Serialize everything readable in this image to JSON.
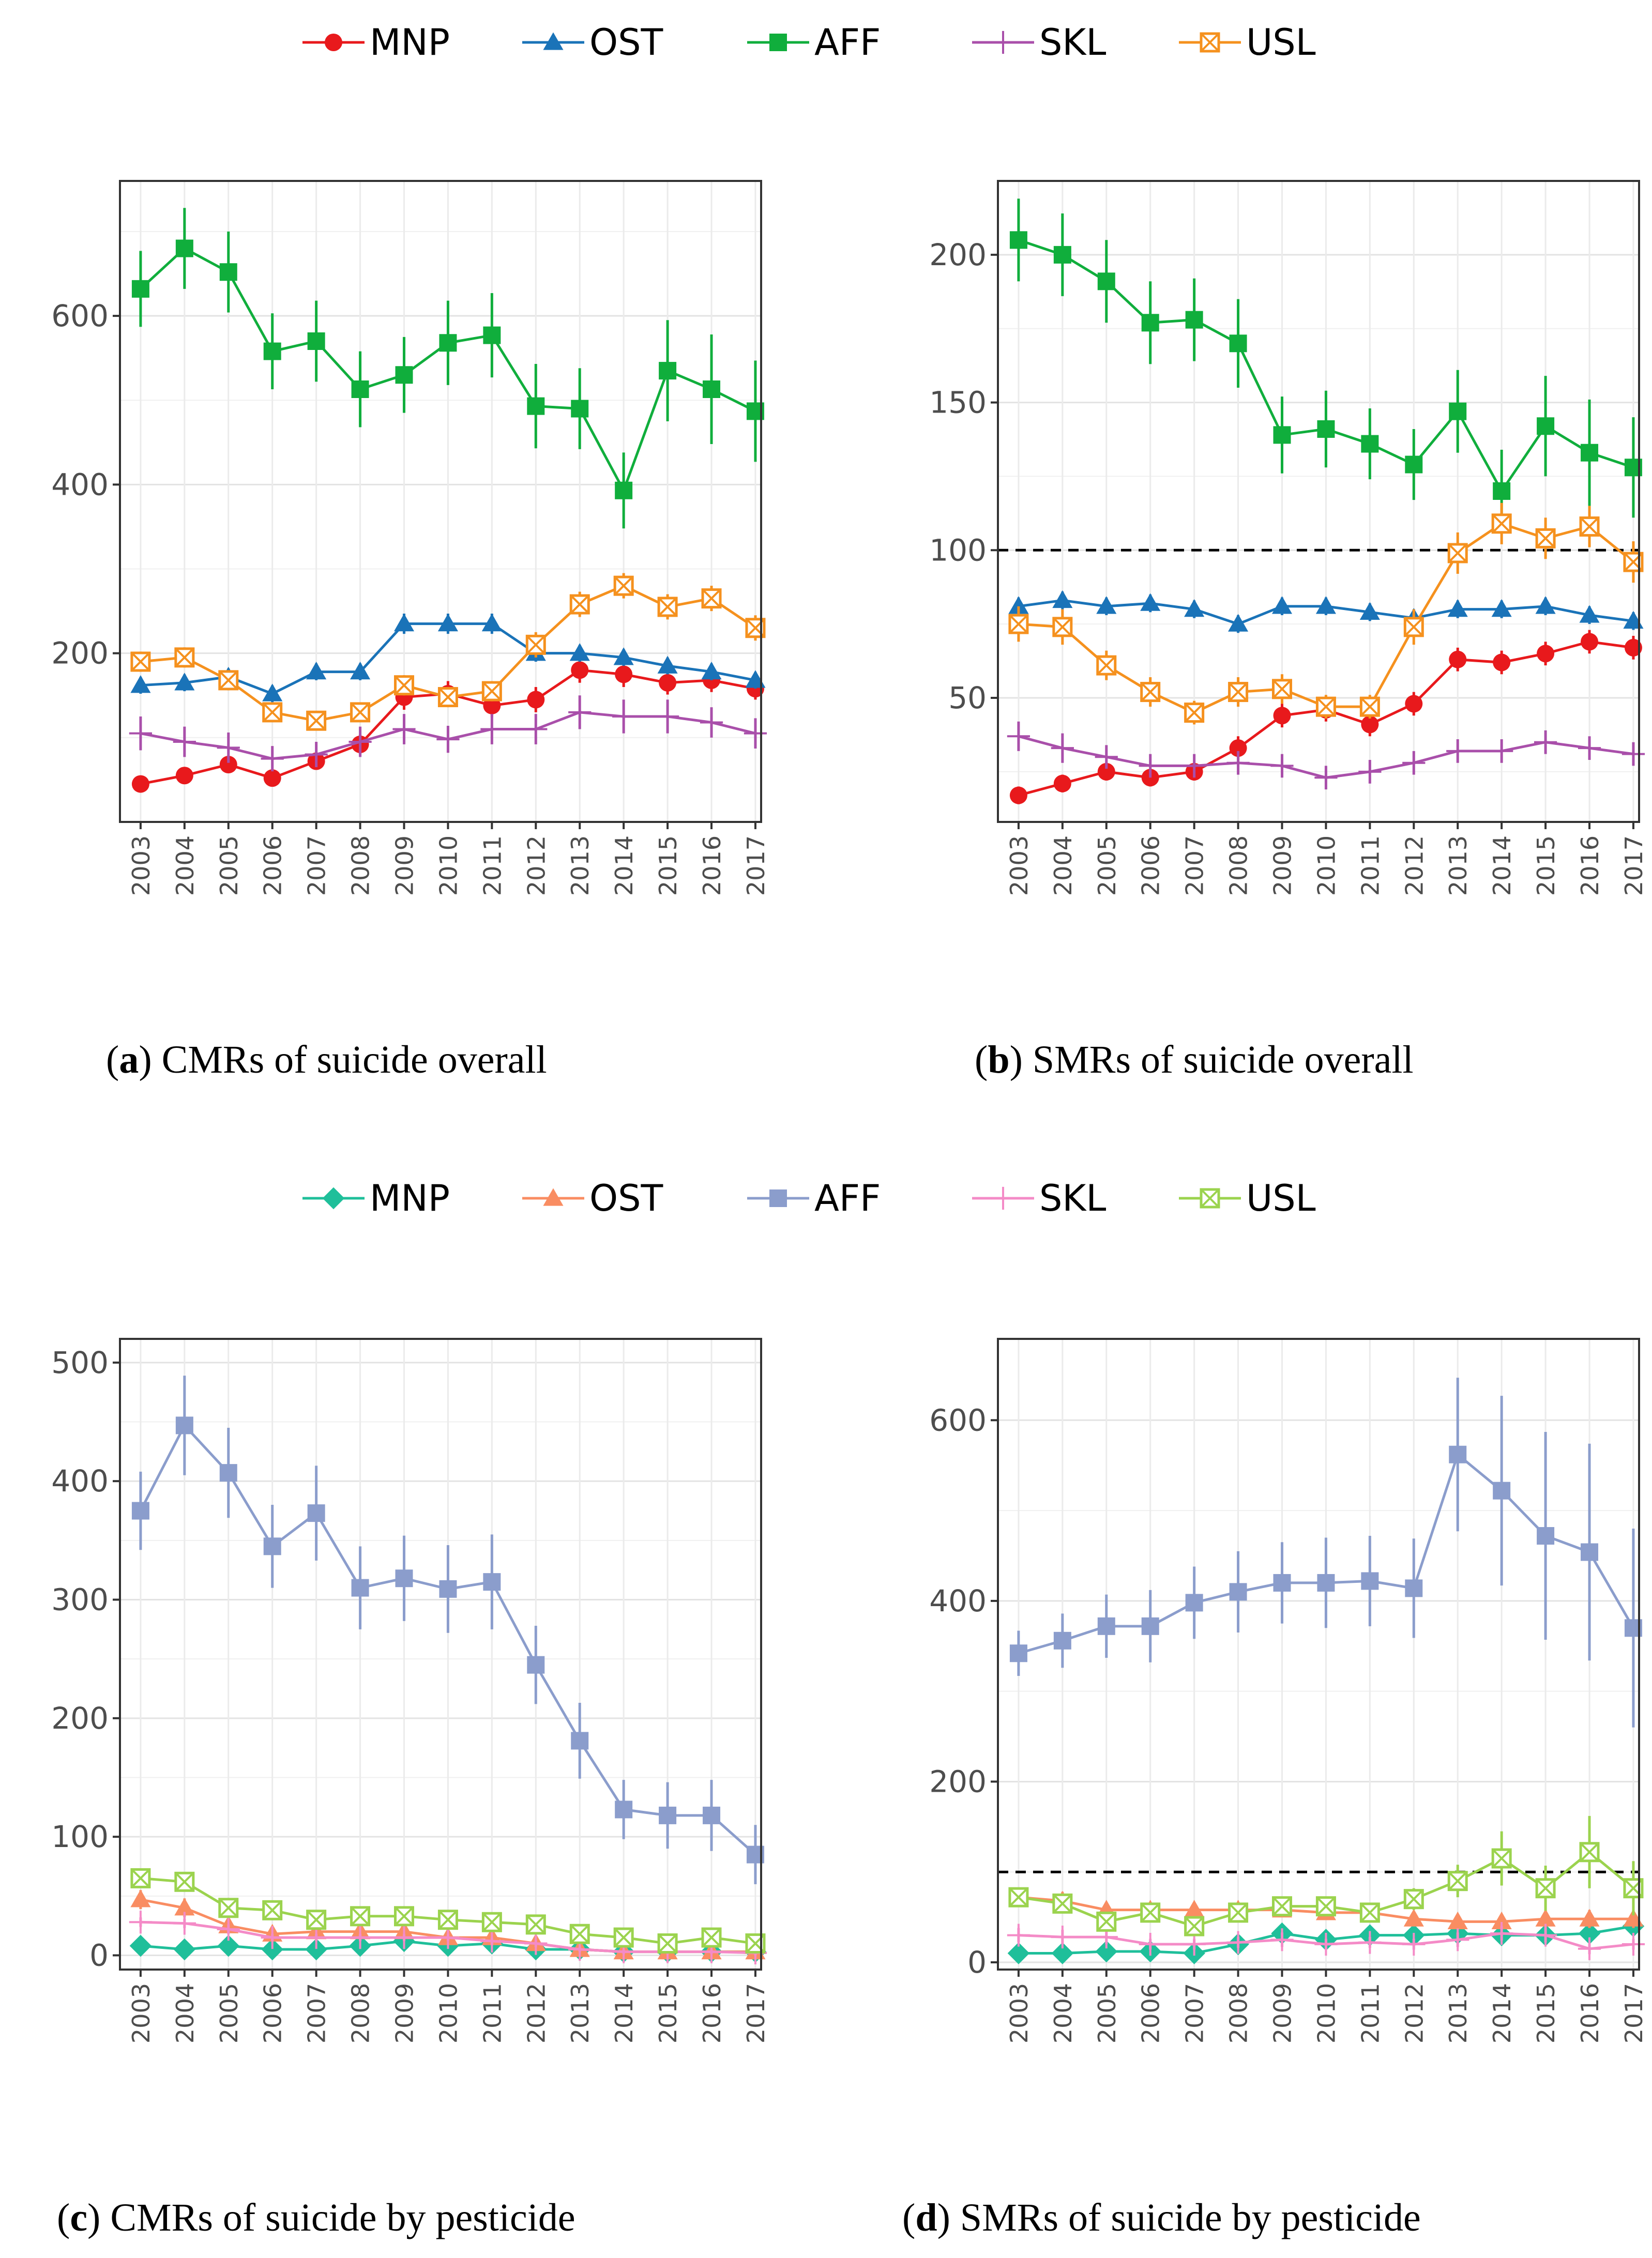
{
  "chart_data": [
    {
      "type": "line",
      "panel": "a",
      "caption_letter": "a",
      "caption_text": " CMRs of suicide overall",
      "x": [
        2003,
        2004,
        2005,
        2006,
        2007,
        2008,
        2009,
        2010,
        2011,
        2012,
        2013,
        2014,
        2015,
        2016,
        2017
      ],
      "ylim": [
        0,
        760
      ],
      "yticks": [
        200,
        400,
        600
      ],
      "reference_line": null,
      "legend_position": "top",
      "series": [
        {
          "name": "MNP",
          "values": [
            45,
            55,
            68,
            52,
            72,
            92,
            148,
            152,
            138,
            145,
            180,
            175,
            165,
            168,
            158
          ],
          "err": [
            8,
            8,
            10,
            9,
            10,
            12,
            15,
            15,
            14,
            15,
            15,
            15,
            14,
            14,
            13
          ]
        },
        {
          "name": "OST",
          "values": [
            162,
            165,
            172,
            152,
            178,
            178,
            235,
            235,
            235,
            200,
            200,
            195,
            185,
            178,
            168
          ],
          "err": [
            10,
            10,
            10,
            10,
            10,
            10,
            12,
            12,
            12,
            10,
            10,
            10,
            10,
            10,
            10
          ]
        },
        {
          "name": "AFF",
          "values": [
            632,
            680,
            652,
            558,
            570,
            513,
            530,
            568,
            577,
            493,
            490,
            393,
            535,
            513,
            487
          ],
          "err": [
            45,
            48,
            48,
            45,
            48,
            45,
            45,
            50,
            50,
            50,
            48,
            45,
            60,
            65,
            60
          ]
        },
        {
          "name": "SKL",
          "values": [
            105,
            95,
            88,
            75,
            80,
            95,
            110,
            98,
            110,
            110,
            130,
            125,
            125,
            118,
            105
          ],
          "err": [
            20,
            18,
            18,
            15,
            15,
            18,
            18,
            16,
            18,
            18,
            20,
            20,
            20,
            18,
            18
          ]
        },
        {
          "name": "USL",
          "values": [
            190,
            195,
            168,
            130,
            120,
            130,
            162,
            148,
            155,
            210,
            258,
            280,
            255,
            265,
            230
          ],
          "err": [
            12,
            12,
            12,
            10,
            10,
            10,
            12,
            12,
            12,
            15,
            15,
            15,
            15,
            15,
            15
          ]
        }
      ]
    },
    {
      "type": "line",
      "panel": "b",
      "caption_letter": "b",
      "caption_text": " SMRs of suicide overall",
      "x": [
        2003,
        2004,
        2005,
        2006,
        2007,
        2008,
        2009,
        2010,
        2011,
        2012,
        2013,
        2014,
        2015,
        2016,
        2017
      ],
      "ylim": [
        8,
        225
      ],
      "yticks": [
        50,
        100,
        150,
        200
      ],
      "reference_line": 100,
      "legend_position": "top",
      "series": [
        {
          "name": "MNP",
          "values": [
            17,
            21,
            25,
            23,
            25,
            33,
            44,
            46,
            41,
            48,
            63,
            62,
            65,
            69,
            67
          ],
          "err": [
            3,
            3,
            3,
            3,
            3,
            4,
            4,
            4,
            4,
            4,
            4,
            4,
            4,
            4,
            4
          ]
        },
        {
          "name": "OST",
          "values": [
            81,
            83,
            81,
            82,
            80,
            75,
            81,
            81,
            79,
            77,
            80,
            80,
            81,
            78,
            76
          ],
          "err": [
            3,
            3,
            3,
            3,
            3,
            3,
            3,
            3,
            3,
            3,
            3,
            3,
            3,
            3,
            3
          ]
        },
        {
          "name": "AFF",
          "values": [
            205,
            200,
            191,
            177,
            178,
            170,
            139,
            141,
            136,
            129,
            147,
            120,
            142,
            133,
            128
          ],
          "err": [
            14,
            14,
            14,
            14,
            14,
            15,
            13,
            13,
            12,
            12,
            14,
            14,
            17,
            18,
            17
          ]
        },
        {
          "name": "SKL",
          "values": [
            37,
            33,
            30,
            27,
            27,
            28,
            27,
            23,
            25,
            28,
            32,
            32,
            35,
            33,
            31
          ],
          "err": [
            5,
            5,
            4,
            4,
            4,
            4,
            4,
            4,
            4,
            4,
            4,
            4,
            4,
            4,
            4
          ]
        },
        {
          "name": "USL",
          "values": [
            75,
            74,
            61,
            52,
            45,
            52,
            53,
            47,
            47,
            74,
            99,
            109,
            104,
            108,
            96
          ],
          "err": [
            6,
            6,
            5,
            5,
            4,
            5,
            5,
            4,
            4,
            6,
            7,
            7,
            7,
            7,
            7
          ]
        }
      ]
    },
    {
      "type": "line",
      "panel": "c",
      "caption_letter": "c",
      "caption_text": " CMRs of suicide by pesticide",
      "x": [
        2003,
        2004,
        2005,
        2006,
        2007,
        2008,
        2009,
        2010,
        2011,
        2012,
        2013,
        2014,
        2015,
        2016,
        2017
      ],
      "ylim": [
        -12,
        520
      ],
      "yticks": [
        0,
        100,
        200,
        300,
        400,
        500
      ],
      "reference_line": null,
      "legend_position": "top",
      "series": [
        {
          "name": "MNP",
          "values": [
            8,
            5,
            8,
            5,
            5,
            8,
            12,
            8,
            10,
            5,
            5,
            3,
            3,
            3,
            3
          ],
          "err": [
            3,
            3,
            3,
            3,
            3,
            3,
            4,
            3,
            3,
            3,
            3,
            2,
            2,
            2,
            2
          ]
        },
        {
          "name": "OST",
          "values": [
            47,
            40,
            25,
            18,
            20,
            20,
            20,
            15,
            15,
            10,
            5,
            3,
            3,
            3,
            3
          ],
          "err": [
            8,
            8,
            6,
            5,
            5,
            5,
            5,
            4,
            4,
            4,
            3,
            2,
            2,
            2,
            2
          ]
        },
        {
          "name": "AFF",
          "values": [
            375,
            447,
            407,
            345,
            373,
            310,
            318,
            309,
            315,
            245,
            181,
            123,
            118,
            118,
            85
          ],
          "err": [
            33,
            42,
            38,
            35,
            40,
            35,
            36,
            37,
            40,
            33,
            32,
            25,
            28,
            30,
            25
          ]
        },
        {
          "name": "SKL",
          "values": [
            28,
            27,
            22,
            15,
            15,
            15,
            15,
            15,
            12,
            10,
            5,
            3,
            3,
            3,
            2
          ],
          "err": [
            4,
            4,
            4,
            3,
            3,
            3,
            3,
            3,
            3,
            3,
            2,
            2,
            2,
            2,
            2
          ]
        },
        {
          "name": "USL",
          "values": [
            65,
            62,
            40,
            38,
            30,
            33,
            33,
            30,
            28,
            26,
            18,
            15,
            10,
            15,
            10
          ],
          "err": [
            8,
            8,
            6,
            6,
            5,
            5,
            5,
            5,
            5,
            5,
            4,
            4,
            3,
            4,
            3
          ]
        }
      ]
    },
    {
      "type": "line",
      "panel": "d",
      "caption_letter": "d",
      "caption_text": " SMRs of suicide by pesticide",
      "x": [
        2003,
        2004,
        2005,
        2006,
        2007,
        2008,
        2009,
        2010,
        2011,
        2012,
        2013,
        2014,
        2015,
        2016,
        2017
      ],
      "ylim": [
        -8,
        690
      ],
      "yticks": [
        0,
        200,
        400,
        600
      ],
      "reference_line": 100,
      "legend_position": "top",
      "series": [
        {
          "name": "MNP",
          "values": [
            10,
            10,
            12,
            12,
            10,
            20,
            32,
            25,
            30,
            30,
            32,
            30,
            30,
            32,
            40
          ],
          "err": [
            5,
            5,
            5,
            5,
            5,
            7,
            8,
            8,
            8,
            8,
            8,
            8,
            8,
            8,
            10
          ]
        },
        {
          "name": "OST",
          "values": [
            72,
            68,
            58,
            58,
            58,
            58,
            58,
            55,
            55,
            48,
            45,
            45,
            48,
            48,
            48
          ],
          "err": [
            10,
            10,
            8,
            8,
            8,
            8,
            8,
            8,
            8,
            8,
            8,
            8,
            10,
            10,
            10
          ]
        },
        {
          "name": "AFF",
          "values": [
            342,
            356,
            372,
            372,
            398,
            410,
            420,
            420,
            422,
            414,
            562,
            522,
            472,
            454,
            370
          ],
          "err": [
            25,
            30,
            35,
            40,
            40,
            45,
            45,
            50,
            50,
            55,
            85,
            105,
            115,
            120,
            110
          ]
        },
        {
          "name": "SKL",
          "values": [
            30,
            28,
            28,
            20,
            20,
            22,
            25,
            20,
            22,
            20,
            25,
            32,
            30,
            15,
            20
          ],
          "err": [
            8,
            8,
            8,
            6,
            6,
            6,
            8,
            6,
            6,
            6,
            8,
            8,
            8,
            6,
            6
          ]
        },
        {
          "name": "USL",
          "values": [
            72,
            65,
            45,
            55,
            40,
            55,
            62,
            62,
            55,
            70,
            90,
            115,
            82,
            122,
            82
          ],
          "err": [
            10,
            10,
            8,
            10,
            8,
            10,
            10,
            10,
            10,
            12,
            18,
            30,
            25,
            40,
            30
          ]
        }
      ]
    }
  ],
  "legend_top": {
    "labels": [
      "MNP",
      "OST",
      "AFF",
      "SKL",
      "USL"
    ],
    "colors": [
      "#e8191c",
      "#1a73b8",
      "#10ae3c",
      "#a94faa",
      "#f5911e"
    ],
    "markers": [
      "circle",
      "triangle",
      "square",
      "plus",
      "boxx"
    ]
  },
  "legend_bottom": {
    "labels": [
      "MNP",
      "OST",
      "AFF",
      "SKL",
      "USL"
    ],
    "colors": [
      "#1fbf9a",
      "#f98d62",
      "#8b9dcc",
      "#f48bc7",
      "#9bd34e"
    ],
    "markers": [
      "diamond",
      "triangle",
      "square",
      "plus",
      "boxx"
    ]
  },
  "panel_colors": {
    "a": [
      "#e8191c",
      "#1a73b8",
      "#10ae3c",
      "#a94faa",
      "#f5911e"
    ],
    "b": [
      "#e8191c",
      "#1a73b8",
      "#10ae3c",
      "#a94faa",
      "#f5911e"
    ],
    "c": [
      "#1fbf9a",
      "#f98d62",
      "#8b9dcc",
      "#f48bc7",
      "#9bd34e"
    ],
    "d": [
      "#1fbf9a",
      "#f98d62",
      "#8b9dcc",
      "#f48bc7",
      "#9bd34e"
    ]
  },
  "panel_markers": {
    "a": [
      "circle",
      "triangle",
      "square",
      "plus",
      "boxx"
    ],
    "b": [
      "circle",
      "triangle",
      "square",
      "plus",
      "boxx"
    ],
    "c": [
      "diamond",
      "triangle",
      "square",
      "plus",
      "boxx"
    ],
    "d": [
      "diamond",
      "triangle",
      "square",
      "plus",
      "boxx"
    ]
  }
}
